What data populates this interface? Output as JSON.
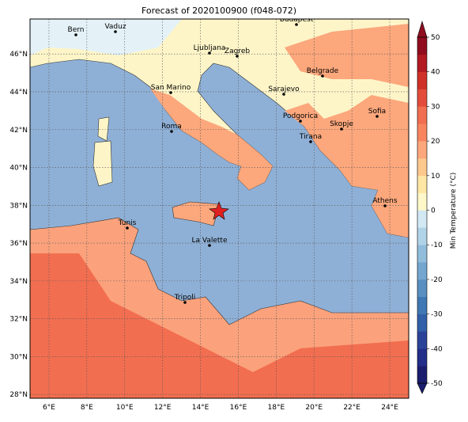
{
  "title": "Forecast of 2020100900 (f048-072)",
  "map": {
    "lon_range": [
      5,
      25
    ],
    "lat_range": [
      27.8,
      47.85
    ],
    "lon_ticks": [
      {
        "value": 6,
        "label": "6°E"
      },
      {
        "value": 8,
        "label": "8°E"
      },
      {
        "value": 10,
        "label": "10°E"
      },
      {
        "value": 12,
        "label": "12°E"
      },
      {
        "value": 14,
        "label": "14°E"
      },
      {
        "value": 16,
        "label": "16°E"
      },
      {
        "value": 18,
        "label": "18°E"
      },
      {
        "value": 20,
        "label": "20°E"
      },
      {
        "value": 22,
        "label": "22°E"
      },
      {
        "value": 24,
        "label": "24°E"
      }
    ],
    "lat_ticks": [
      {
        "value": 28,
        "label": "28°N"
      },
      {
        "value": 30,
        "label": "30°N"
      },
      {
        "value": 32,
        "label": "32°N"
      },
      {
        "value": 34,
        "label": "34°N"
      },
      {
        "value": 36,
        "label": "36°N"
      },
      {
        "value": 38,
        "label": "38°N"
      },
      {
        "value": 40,
        "label": "40°N"
      },
      {
        "value": 42,
        "label": "42°N"
      },
      {
        "value": 44,
        "label": "44°N"
      },
      {
        "value": 46,
        "label": "46°N"
      }
    ],
    "cities": [
      "Bern",
      "Vaduz",
      "Budapest",
      "Ljubljana",
      "Zagreb",
      "Belgrade",
      "San Marino",
      "Sarajevo",
      "Sofia",
      "Podgorica",
      "Skopje",
      "Roma",
      "Tirana",
      "Athens",
      "Tunis",
      "La Valette",
      "Tripoli"
    ]
  },
  "colorbar": {
    "label": "Min Temperature (°C)",
    "range": [
      -50,
      50
    ],
    "ticks": [
      -50,
      -40,
      -30,
      -20,
      -10,
      0,
      10,
      20,
      30,
      40,
      50
    ],
    "colors": [
      "#1a1c6e",
      "#232d8a",
      "#2a4399",
      "#3160a8",
      "#3f78b4",
      "#5990c1",
      "#74a6cf",
      "#91bddb",
      "#b0d3e7",
      "#d2e8f2",
      "#fdf7c9",
      "#fee7a4",
      "#fdc88d",
      "#fca77c",
      "#f8855f",
      "#f26e50",
      "#e34c3a",
      "#cf3129",
      "#b21a22",
      "#8f0d1e"
    ]
  }
}
